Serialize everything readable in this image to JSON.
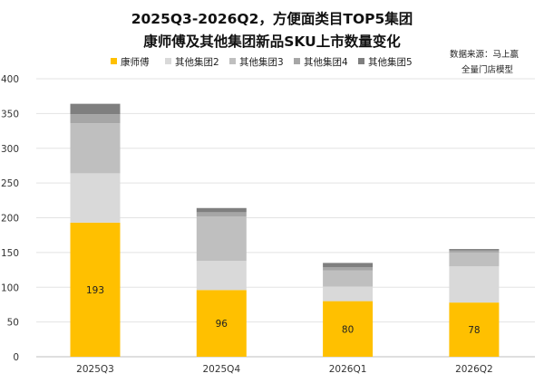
{
  "chart_data": {
    "type": "bar",
    "stacked": true,
    "title_lines": [
      "2025Q3-2026Q2，方便面类目TOP5集团",
      "康师傅及其他集团新品SKU上市数量变化"
    ],
    "source_lines": [
      "数据来源：马上赢",
      "全量门店模型"
    ],
    "categories": [
      "2025Q3",
      "2025Q4",
      "2026Q1",
      "2026Q2"
    ],
    "ylim": [
      0,
      400
    ],
    "yticks": [
      0,
      50,
      100,
      150,
      200,
      250,
      300,
      350,
      400
    ],
    "grid": true,
    "legend_position": "top-right",
    "series": [
      {
        "name": "康师傅",
        "color": "#FFC000",
        "values": [
          193,
          96,
          80,
          78
        ],
        "show_labels": true
      },
      {
        "name": "其他集团2",
        "color": "#D9D9D9",
        "values": [
          71,
          42,
          21,
          52
        ],
        "show_labels": false
      },
      {
        "name": "其他集团3",
        "color": "#BFBFBF",
        "values": [
          72,
          64,
          23,
          20
        ],
        "show_labels": false
      },
      {
        "name": "其他集团4",
        "color": "#A6A6A6",
        "values": [
          13,
          6,
          5,
          3
        ],
        "show_labels": false
      },
      {
        "name": "其他集团5",
        "color": "#7F7F7F",
        "values": [
          15,
          6,
          6,
          2
        ],
        "show_labels": false
      }
    ]
  }
}
